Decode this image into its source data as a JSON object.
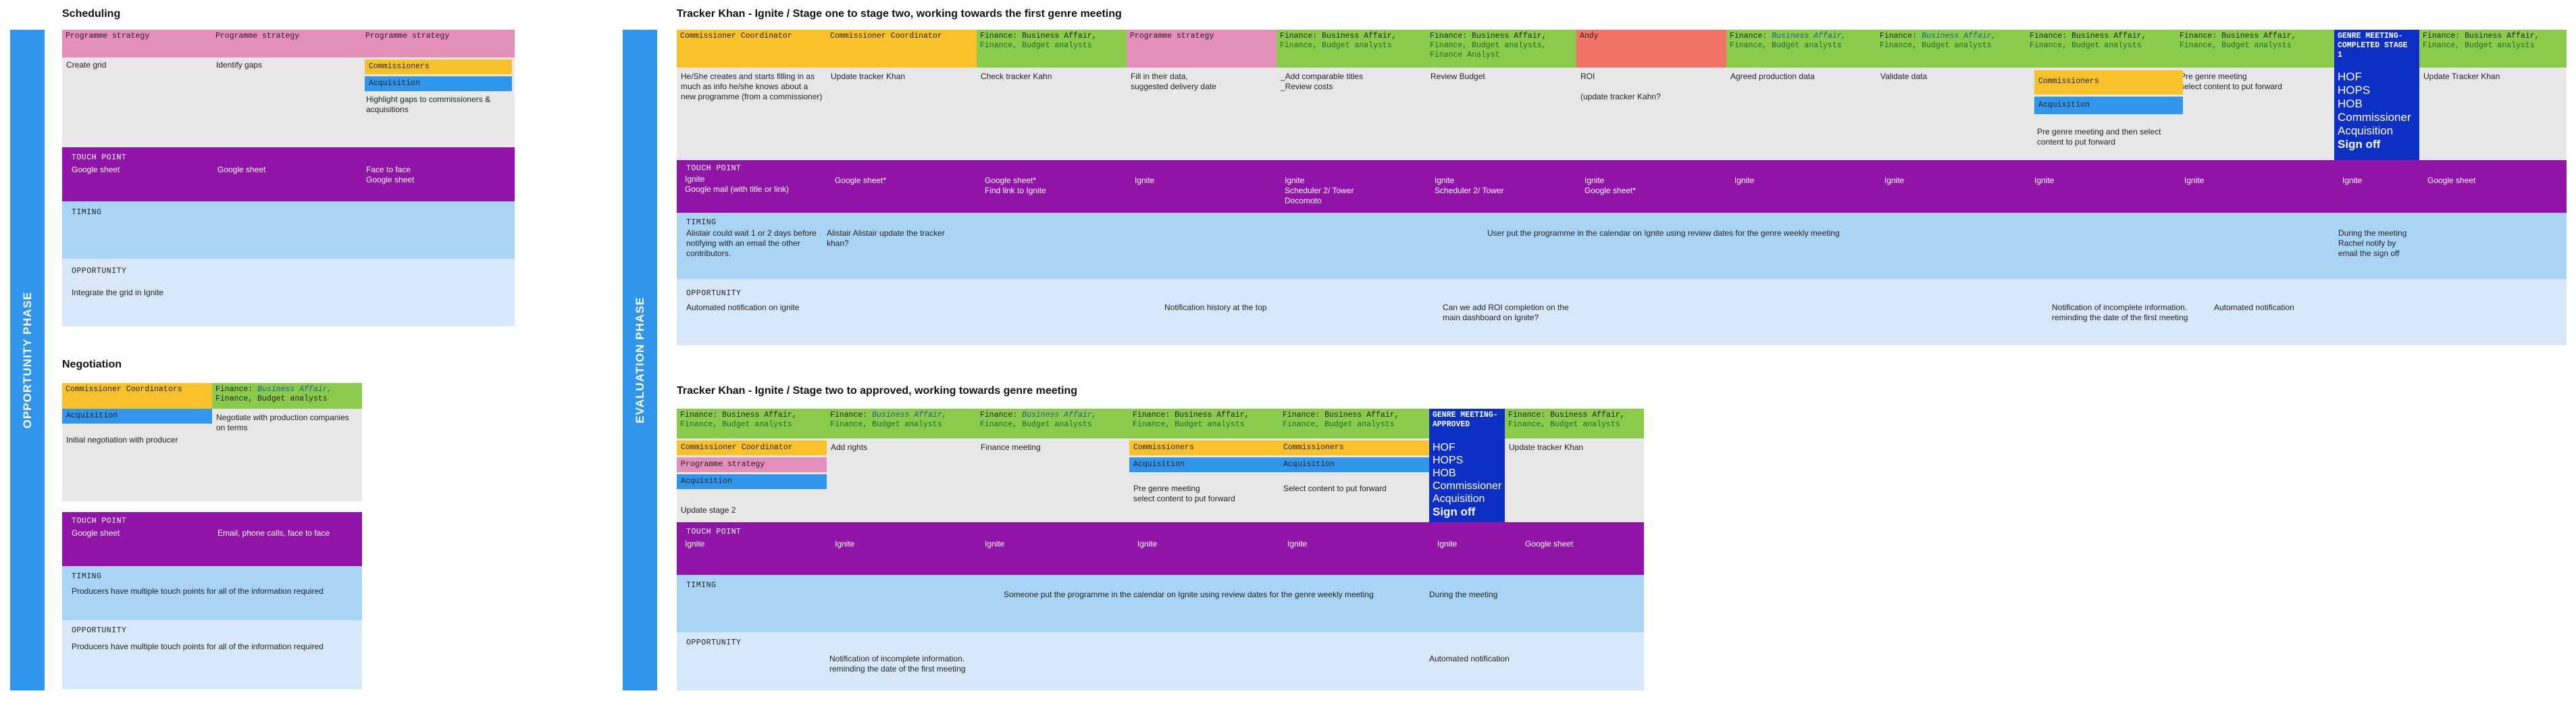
{
  "phases": {
    "opportunity": "OPPORTUNITY PHASE",
    "evaluation": "EVALUATION PHASE"
  },
  "scheduling": {
    "title": "Scheduling",
    "headers": [
      "Programme strategy",
      "Programme strategy",
      "Programme strategy"
    ],
    "sub_commissioners": "Commissioners",
    "sub_acquisition": "Acquisition",
    "actions": [
      "Create grid",
      "Identify gaps",
      "Highlight gaps to commissioners & acquisitions"
    ],
    "touch_label": "TOUCH POINT",
    "touch": [
      "Google sheet",
      "Google sheet",
      "Face to face\nGoogle sheet"
    ],
    "timing_label": "TIMING",
    "opportunity_label": "OPPORTUNITY",
    "opportunity": "Integrate the grid in Ignite"
  },
  "negotiation": {
    "title": "Negotiation",
    "header1": "Commissioner Coordinators",
    "header1_sub": "Acquisition",
    "header2_a": "Finance: ",
    "header2_b": "Business Affair,",
    "header2_c": "Finance, Budget analysts",
    "actions": [
      "Initial negotiation with producer",
      "Negotiate with production companies on terms"
    ],
    "touch_label": "TOUCH POINT",
    "touch": [
      "Google sheet",
      "Email, phone calls, face to face"
    ],
    "timing_label": "TIMING",
    "timing": "Producers have multiple touch points for all of the information required",
    "opportunity_label": "OPPORTUNITY",
    "opportunity": "Producers have multiple touch points for all of the information required"
  },
  "stage_one": {
    "title": "Tracker Khan - Ignite / Stage one to stage two, working towards the first genre meeting",
    "headers": [
      {
        "t": "Commissioner Coordinator"
      },
      {
        "t": "Commissioner Coordinator"
      },
      {
        "a": "Finance: Business Affair,",
        "b": "Finance, Budget analysts"
      },
      {
        "t": "Programme strategy"
      },
      {
        "a": "Finance: Business Affair,",
        "b": "Finance, Budget analysts"
      },
      {
        "a": "Finance: Business Affair,",
        "b": "Finance, Budget analysts, Finance Analyst"
      },
      {
        "t": "Andy"
      },
      {
        "a": "Finance: ",
        "i": "Business Affair,",
        "b": "Finance, Budget analysts"
      },
      {
        "a": "Finance: ",
        "i": "Business Affair,",
        "b": "Finance, Budget analysts"
      },
      {
        "a": "Finance: Business Affair,",
        "b": "Finance, Budget analysts"
      },
      {
        "a": "Finance: Business Affair,",
        "b": "Finance, Budget analysts"
      },
      {
        "t": "GENRE MEETING- COMPLETED STAGE 1"
      },
      {
        "a": "Finance: Business Affair,",
        "b": "Finance, Budget analysts"
      }
    ],
    "actions": [
      "He/She creates and starts filling in as much as info he/she knows about a new programme (from a commissioner)",
      "Update tracker Khan",
      "Check tracker Kahn",
      "Fill in their data,\nsuggested delivery date",
      "_Add comparable titles\n_Review costs",
      "Review Budget",
      "ROI\n\n(update tracker Kahn?",
      "Agreed production data",
      "Validate data",
      "",
      "Pre genre meeting\nselect content to put forward",
      "",
      "Update Tracker Khan"
    ],
    "sub_commissioners": "Commissioners",
    "sub_acquisition": "Acquisition",
    "sub_text": "Pre genre meeting and then select content to put forward",
    "genre_list": [
      "HOF",
      "HOPS",
      "HOB",
      "Commissioner",
      "Acquisition"
    ],
    "genre_signoff": "Sign off",
    "touch_label": "TOUCH POINT",
    "touch": [
      "Ignite\nGoogle mail (with title or link)",
      "Google sheet*",
      "Google sheet*\nFind link to Ignite",
      "Ignite",
      "Ignite\nScheduler 2/ Tower\nDocomoto",
      "Ignite\nScheduler 2/ Tower",
      "Ignite\nGoogle sheet*",
      "Ignite",
      "Ignite",
      "Ignite",
      "Ignite",
      "Ignite",
      "Google sheet"
    ],
    "timing_label": "TIMING",
    "timing_1": "Alistair could wait 1 or 2 days before notifying with an email the other contributors.",
    "timing_2": "Alistair Alistair update the tracker khan?",
    "timing_3": "User put the programme in the calendar on Ignite using review dates for the genre weekly meeting",
    "timing_4": "During the meeting\nRachel notify by\nemail the sign off",
    "opportunity_label": "OPPORTUNITY",
    "opp_1": "Automated notification on ignite",
    "opp_2": "Notification history at the top",
    "opp_3": "Can we add ROI completion on the main dashboard on Ignite?",
    "opp_4": "Notification of incomplete information.\nreminding the date of the first meeting",
    "opp_5": "Automated notification"
  },
  "stage_two": {
    "title": "Tracker Khan - Ignite / Stage two to approved, working towards genre meeting",
    "headers": [
      {
        "a": "Finance: Business Affair,",
        "b": "Finance, Budget analysts"
      },
      {
        "a": "Finance: ",
        "i": "Business Affair,",
        "b": "Finance, Budget analysts"
      },
      {
        "a": "Finance: ",
        "i": "Business Affair,",
        "b": "Finance, Budget analysts"
      },
      {
        "a": "Finance: Business Affair,",
        "b": "Finance, Budget analysts"
      },
      {
        "a": "Finance: Business Affair,",
        "b": "Finance, Budget analysts"
      },
      {
        "t": "GENRE MEETING- APPROVED"
      },
      {
        "a": "Finance: Business Affair,",
        "b": "Finance, Budget analysts"
      }
    ],
    "col1_subs": [
      "Commissioner Coordinator",
      "Programme strategy",
      "Acquisition"
    ],
    "col1_text": "Update stage 2",
    "actions": [
      "",
      "Add rights",
      "Finance meeting",
      "",
      "",
      "",
      "Update tracker Khan"
    ],
    "sub_commissioners": "Commissioners",
    "sub_acquisition": "Acquisition",
    "col4_text": "Pre genre meeting\nselect content to put forward",
    "col5_text": "Select content to put forward",
    "genre_list": [
      "HOF",
      "HOPS",
      "HOB",
      "Commissioner",
      "Acquisition"
    ],
    "genre_signoff": "Sign off",
    "touch_label": "TOUCH POINT",
    "touch": [
      "Ignite",
      "Ignite",
      "Ignite",
      "Ignite",
      "Ignite",
      "Ignite",
      "Google sheet"
    ],
    "timing_label": "TIMING",
    "timing_1": "Someone put the programme in the calendar on Ignite using review dates for the genre weekly meeting",
    "timing_2": "During the meeting",
    "opportunity_label": "OPPORTUNITY",
    "opp_1": "Notification of incomplete information.\nreminding the date of the first meeting",
    "opp_2": "Automated notification"
  },
  "colors": {
    "phase": "#2f96eb",
    "touch": "#9014a8",
    "timing": "#aad4f6",
    "opportunity": "#d8e8fb",
    "finance": "#8bcb4b",
    "coordinator": "#f9c22d",
    "strategy": "#e38fb9",
    "andy": "#f07468",
    "genre": "#0d2fc4"
  }
}
